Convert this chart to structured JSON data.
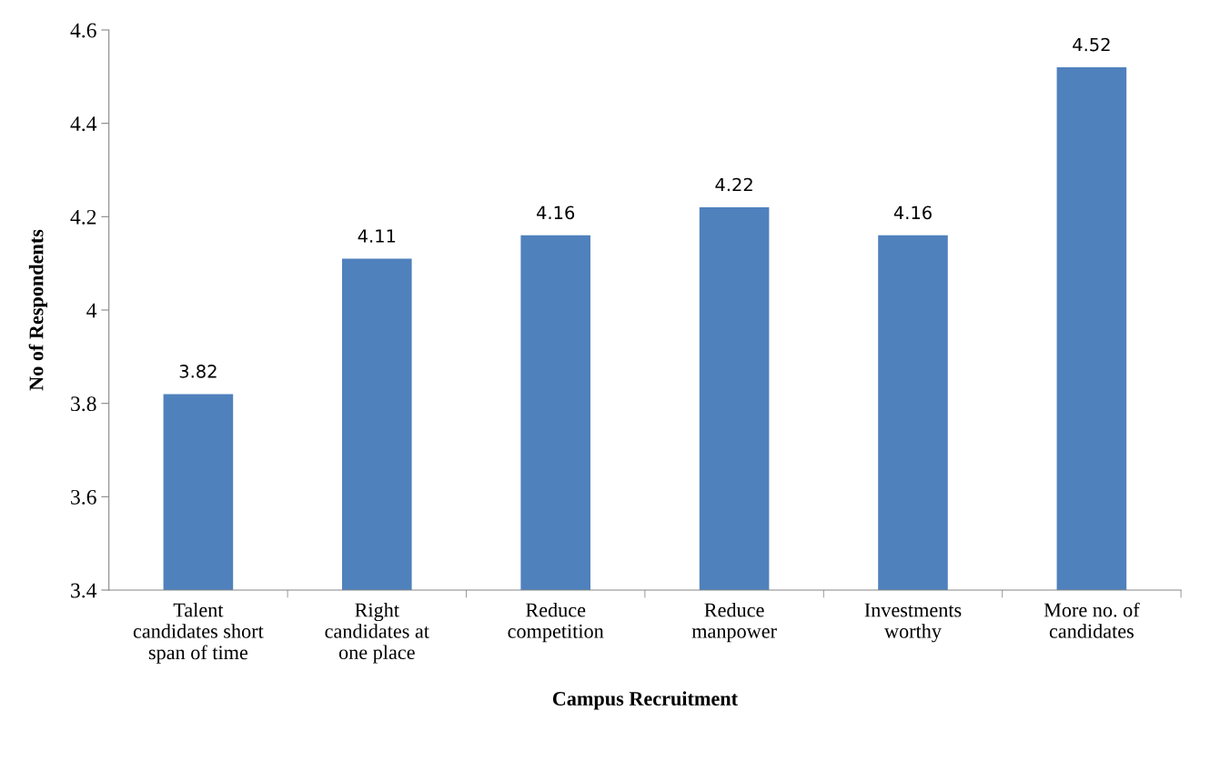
{
  "chart_data": {
    "type": "bar",
    "xlabel": "Campus Recruitment",
    "ylabel": "No of Respondents",
    "categories": [
      "Talent\ncandidates short\nspan of time",
      "Right\ncandidates at\none place",
      "Reduce\ncompetition",
      "Reduce\nmanpower",
      "Investments\nworthy",
      "More no. of\ncandidates"
    ],
    "values": [
      3.82,
      4.11,
      4.16,
      4.22,
      4.16,
      4.52
    ],
    "color": "#4f81bd",
    "ylim": [
      3.4,
      4.6
    ],
    "yticks": [
      3.4,
      3.6,
      3.8,
      {
        "value": 4,
        "label": "4"
      },
      4.2,
      4.4,
      4.6
    ],
    "data_labels": true,
    "grid": false
  }
}
